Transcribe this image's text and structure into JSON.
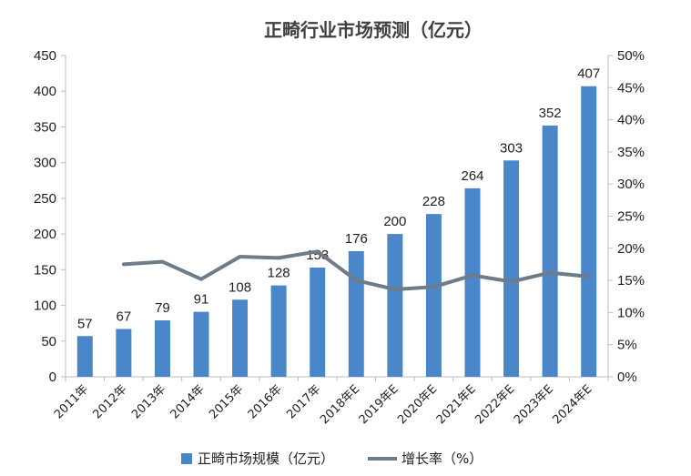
{
  "chart_data": {
    "type": "bar",
    "title": "正畸行业市场预测（亿元）",
    "categories": [
      "2011年",
      "2012年",
      "2013年",
      "2014年",
      "2015年",
      "2016年",
      "2017年",
      "2018年E",
      "2019年E",
      "2020年E",
      "2021年E",
      "2022年E",
      "2023年E",
      "2024年E"
    ],
    "series": [
      {
        "name": "正畸市场规模（亿元）",
        "type": "bar",
        "axis": "left",
        "color": "#4a86c8",
        "values": [
          57,
          67,
          79,
          91,
          108,
          128,
          153,
          176,
          200,
          228,
          264,
          303,
          352,
          407
        ]
      },
      {
        "name": "增长率（%）",
        "type": "line",
        "axis": "right",
        "color": "#6f7b87",
        "values": [
          null,
          17.5,
          17.9,
          15.2,
          18.7,
          18.5,
          19.5,
          15.0,
          13.6,
          14.0,
          15.8,
          14.8,
          16.2,
          15.6
        ]
      }
    ],
    "y_left": {
      "lim": [
        0,
        450
      ],
      "ticks": [
        "0",
        "50",
        "100",
        "150",
        "200",
        "250",
        "300",
        "350",
        "400",
        "450"
      ]
    },
    "y_right": {
      "lim": [
        0,
        50
      ],
      "ticks": [
        "0%",
        "5%",
        "10%",
        "15%",
        "20%",
        "25%",
        "30%",
        "35%",
        "40%",
        "45%",
        "50%"
      ]
    },
    "grid": false,
    "legend_position": "bottom"
  }
}
